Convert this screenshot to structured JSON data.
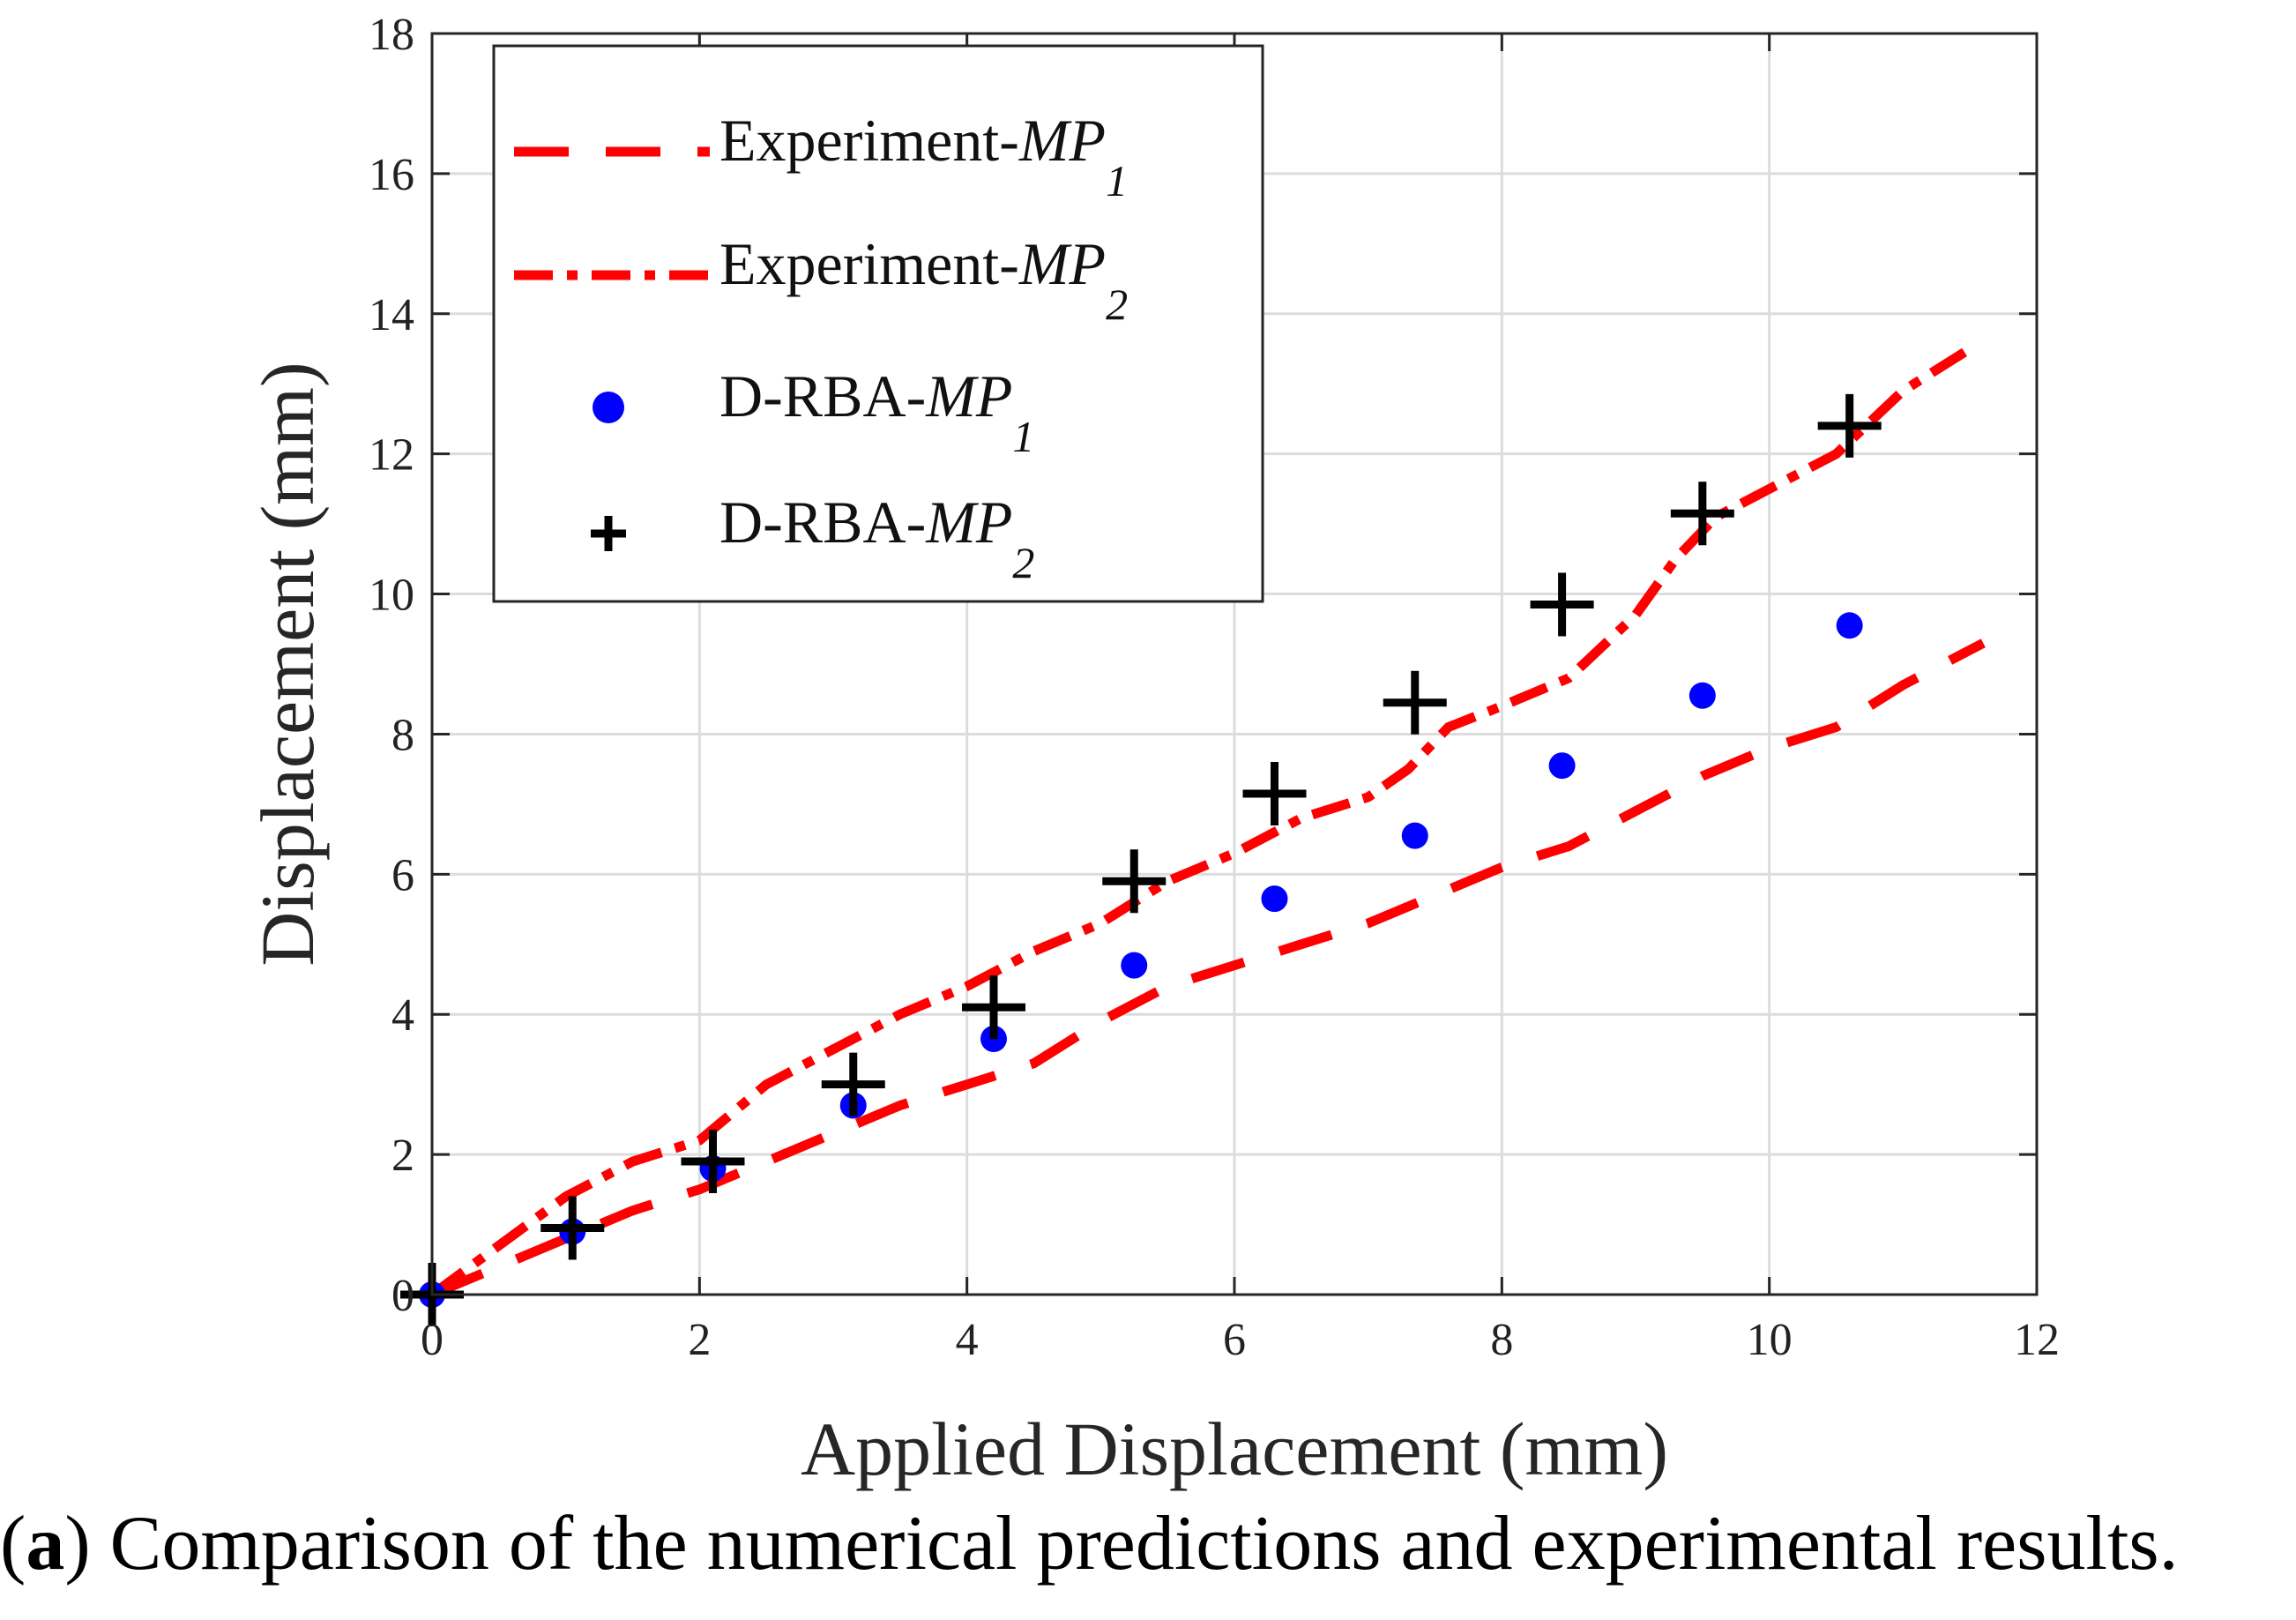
{
  "chart_data": {
    "type": "line",
    "xlabel": "Applied Displacement (mm)",
    "ylabel": "Displacement (mm)",
    "xlim": [
      0,
      12
    ],
    "ylim": [
      0,
      18
    ],
    "xticks": [
      "0",
      "2",
      "4",
      "6",
      "8",
      "10",
      "12"
    ],
    "yticks": [
      "0",
      "2",
      "4",
      "6",
      "8",
      "10",
      "12",
      "14",
      "16",
      "18"
    ],
    "grid": true,
    "legend_position": "top-left",
    "series": [
      {
        "name": "Experiment-MP1",
        "name_base": "Experiment-",
        "name_italic": "MP",
        "name_sub": "1",
        "style": "dashed",
        "color": "#ff0000",
        "x": [
          0,
          0.5,
          1.0,
          1.5,
          2.0,
          2.5,
          3.0,
          3.5,
          4.0,
          4.5,
          5.0,
          5.5,
          6.0,
          6.5,
          7.0,
          7.5,
          8.0,
          8.5,
          9.0,
          9.5,
          10.0,
          10.5,
          11.0,
          11.6
        ],
        "y": [
          0,
          0.4,
          0.8,
          1.2,
          1.5,
          1.9,
          2.3,
          2.7,
          3.0,
          3.3,
          3.9,
          4.4,
          4.7,
          5.0,
          5.3,
          5.7,
          6.1,
          6.4,
          6.9,
          7.4,
          7.8,
          8.1,
          8.7,
          9.3
        ]
      },
      {
        "name": "Experiment-MP2",
        "name_base": "Experiment-",
        "name_italic": "MP",
        "name_sub": "2",
        "style": "dashdot",
        "color": "#ff0000",
        "x": [
          0,
          0.5,
          1.0,
          1.5,
          2.0,
          2.5,
          3.0,
          3.5,
          4.0,
          4.5,
          5.0,
          5.5,
          6.0,
          6.5,
          7.0,
          7.3,
          7.6,
          8.0,
          8.5,
          9.0,
          9.3,
          9.6,
          10.0,
          10.5,
          11.0,
          11.5
        ],
        "y": [
          0,
          0.7,
          1.4,
          1.9,
          2.2,
          3.0,
          3.5,
          4.0,
          4.4,
          4.9,
          5.3,
          5.9,
          6.3,
          6.8,
          7.1,
          7.5,
          8.1,
          8.4,
          8.8,
          9.7,
          10.5,
          11.1,
          11.5,
          12.0,
          12.9,
          13.5
        ]
      },
      {
        "name": "D-RBA-MP1",
        "name_base": "D-RBA-",
        "name_italic": "MP",
        "name_sub": "1",
        "style": "dots",
        "color": "#0000ff",
        "x": [
          0,
          1.05,
          2.1,
          3.15,
          4.2,
          5.25,
          6.3,
          7.35,
          8.45,
          9.5,
          10.6
        ],
        "y": [
          0,
          0.9,
          1.8,
          2.7,
          3.65,
          4.7,
          5.65,
          6.55,
          7.55,
          8.55,
          9.55
        ]
      },
      {
        "name": "D-RBA-MP2",
        "name_base": "D-RBA-",
        "name_italic": "MP",
        "name_sub": "2",
        "style": "plus",
        "color": "#000000",
        "x": [
          0,
          1.05,
          2.1,
          3.15,
          4.2,
          5.25,
          6.3,
          7.35,
          8.45,
          9.5,
          10.6
        ],
        "y": [
          0,
          0.95,
          1.9,
          3.0,
          4.1,
          5.9,
          7.15,
          8.45,
          9.85,
          11.15,
          12.4
        ]
      }
    ]
  },
  "caption": {
    "label": "a",
    "text": " Comparison of the numerical predictions and experimental results."
  }
}
